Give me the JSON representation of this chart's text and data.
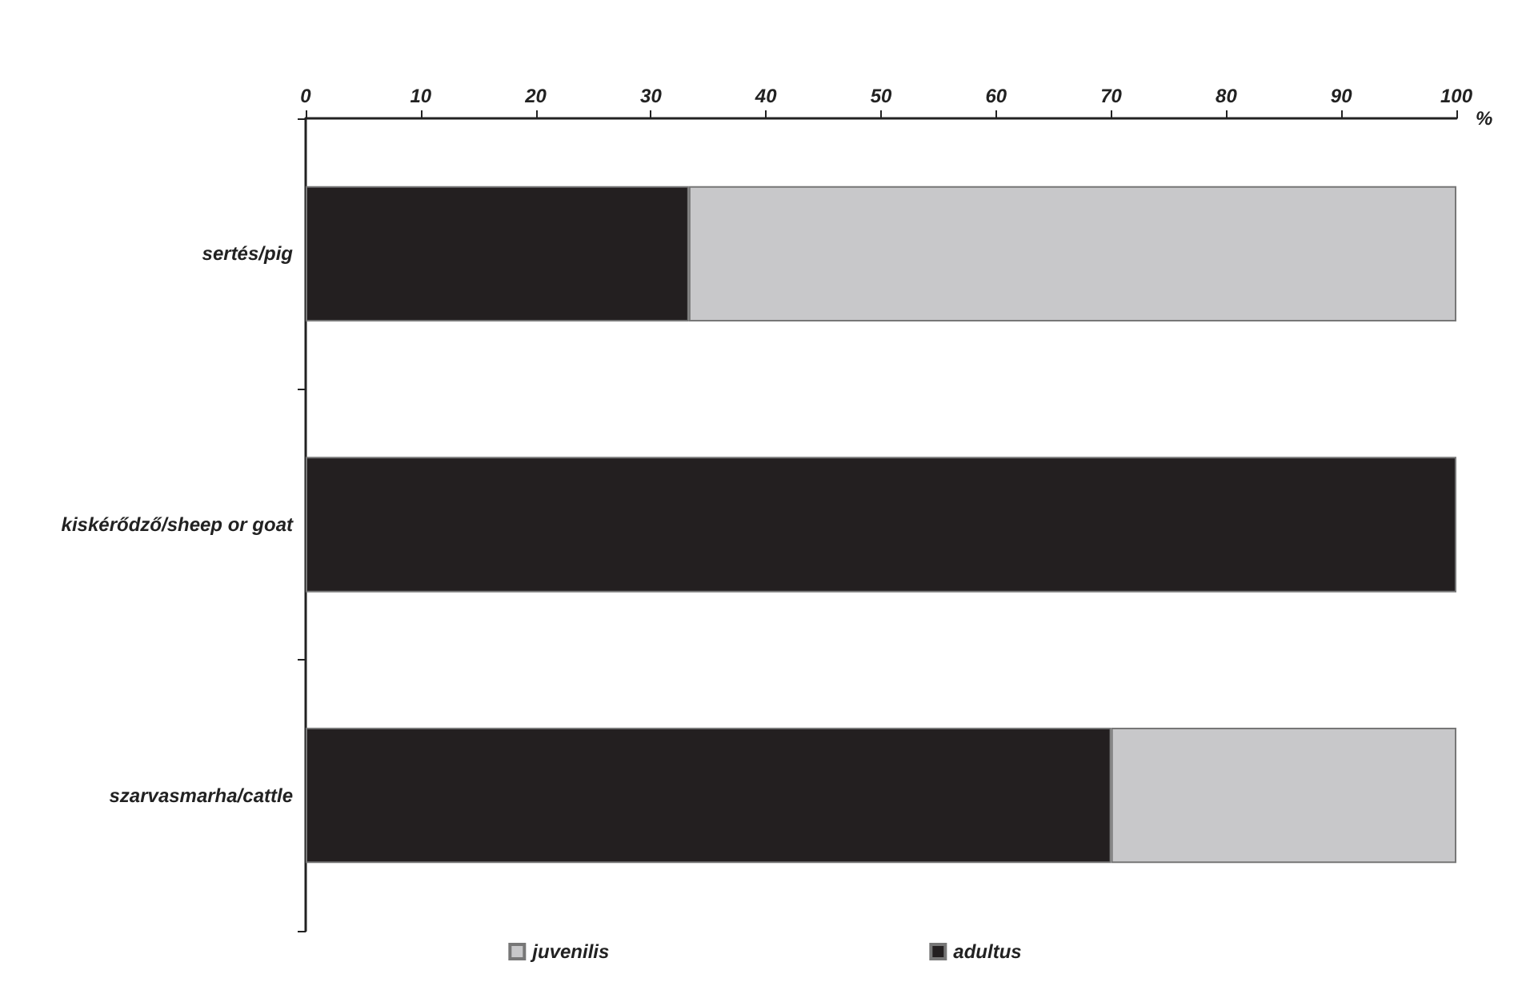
{
  "chart_data": {
    "type": "bar",
    "orientation": "horizontal",
    "stacked": true,
    "xlabel": "%",
    "categories": [
      "sertés/pig",
      "kiskérődző/sheep or goat",
      "szarvasmarha/cattle"
    ],
    "series": [
      {
        "name": "adultus",
        "color": "#231f20",
        "values": [
          33.3,
          100,
          70
        ]
      },
      {
        "name": "juvenilis",
        "color": "#c8c8ca",
        "values": [
          66.7,
          0,
          30
        ]
      }
    ],
    "xlim": [
      0,
      100
    ],
    "xticks": [
      0,
      10,
      20,
      30,
      40,
      50,
      60,
      70,
      80,
      90,
      100
    ],
    "grid": false,
    "legend": "bottom"
  }
}
